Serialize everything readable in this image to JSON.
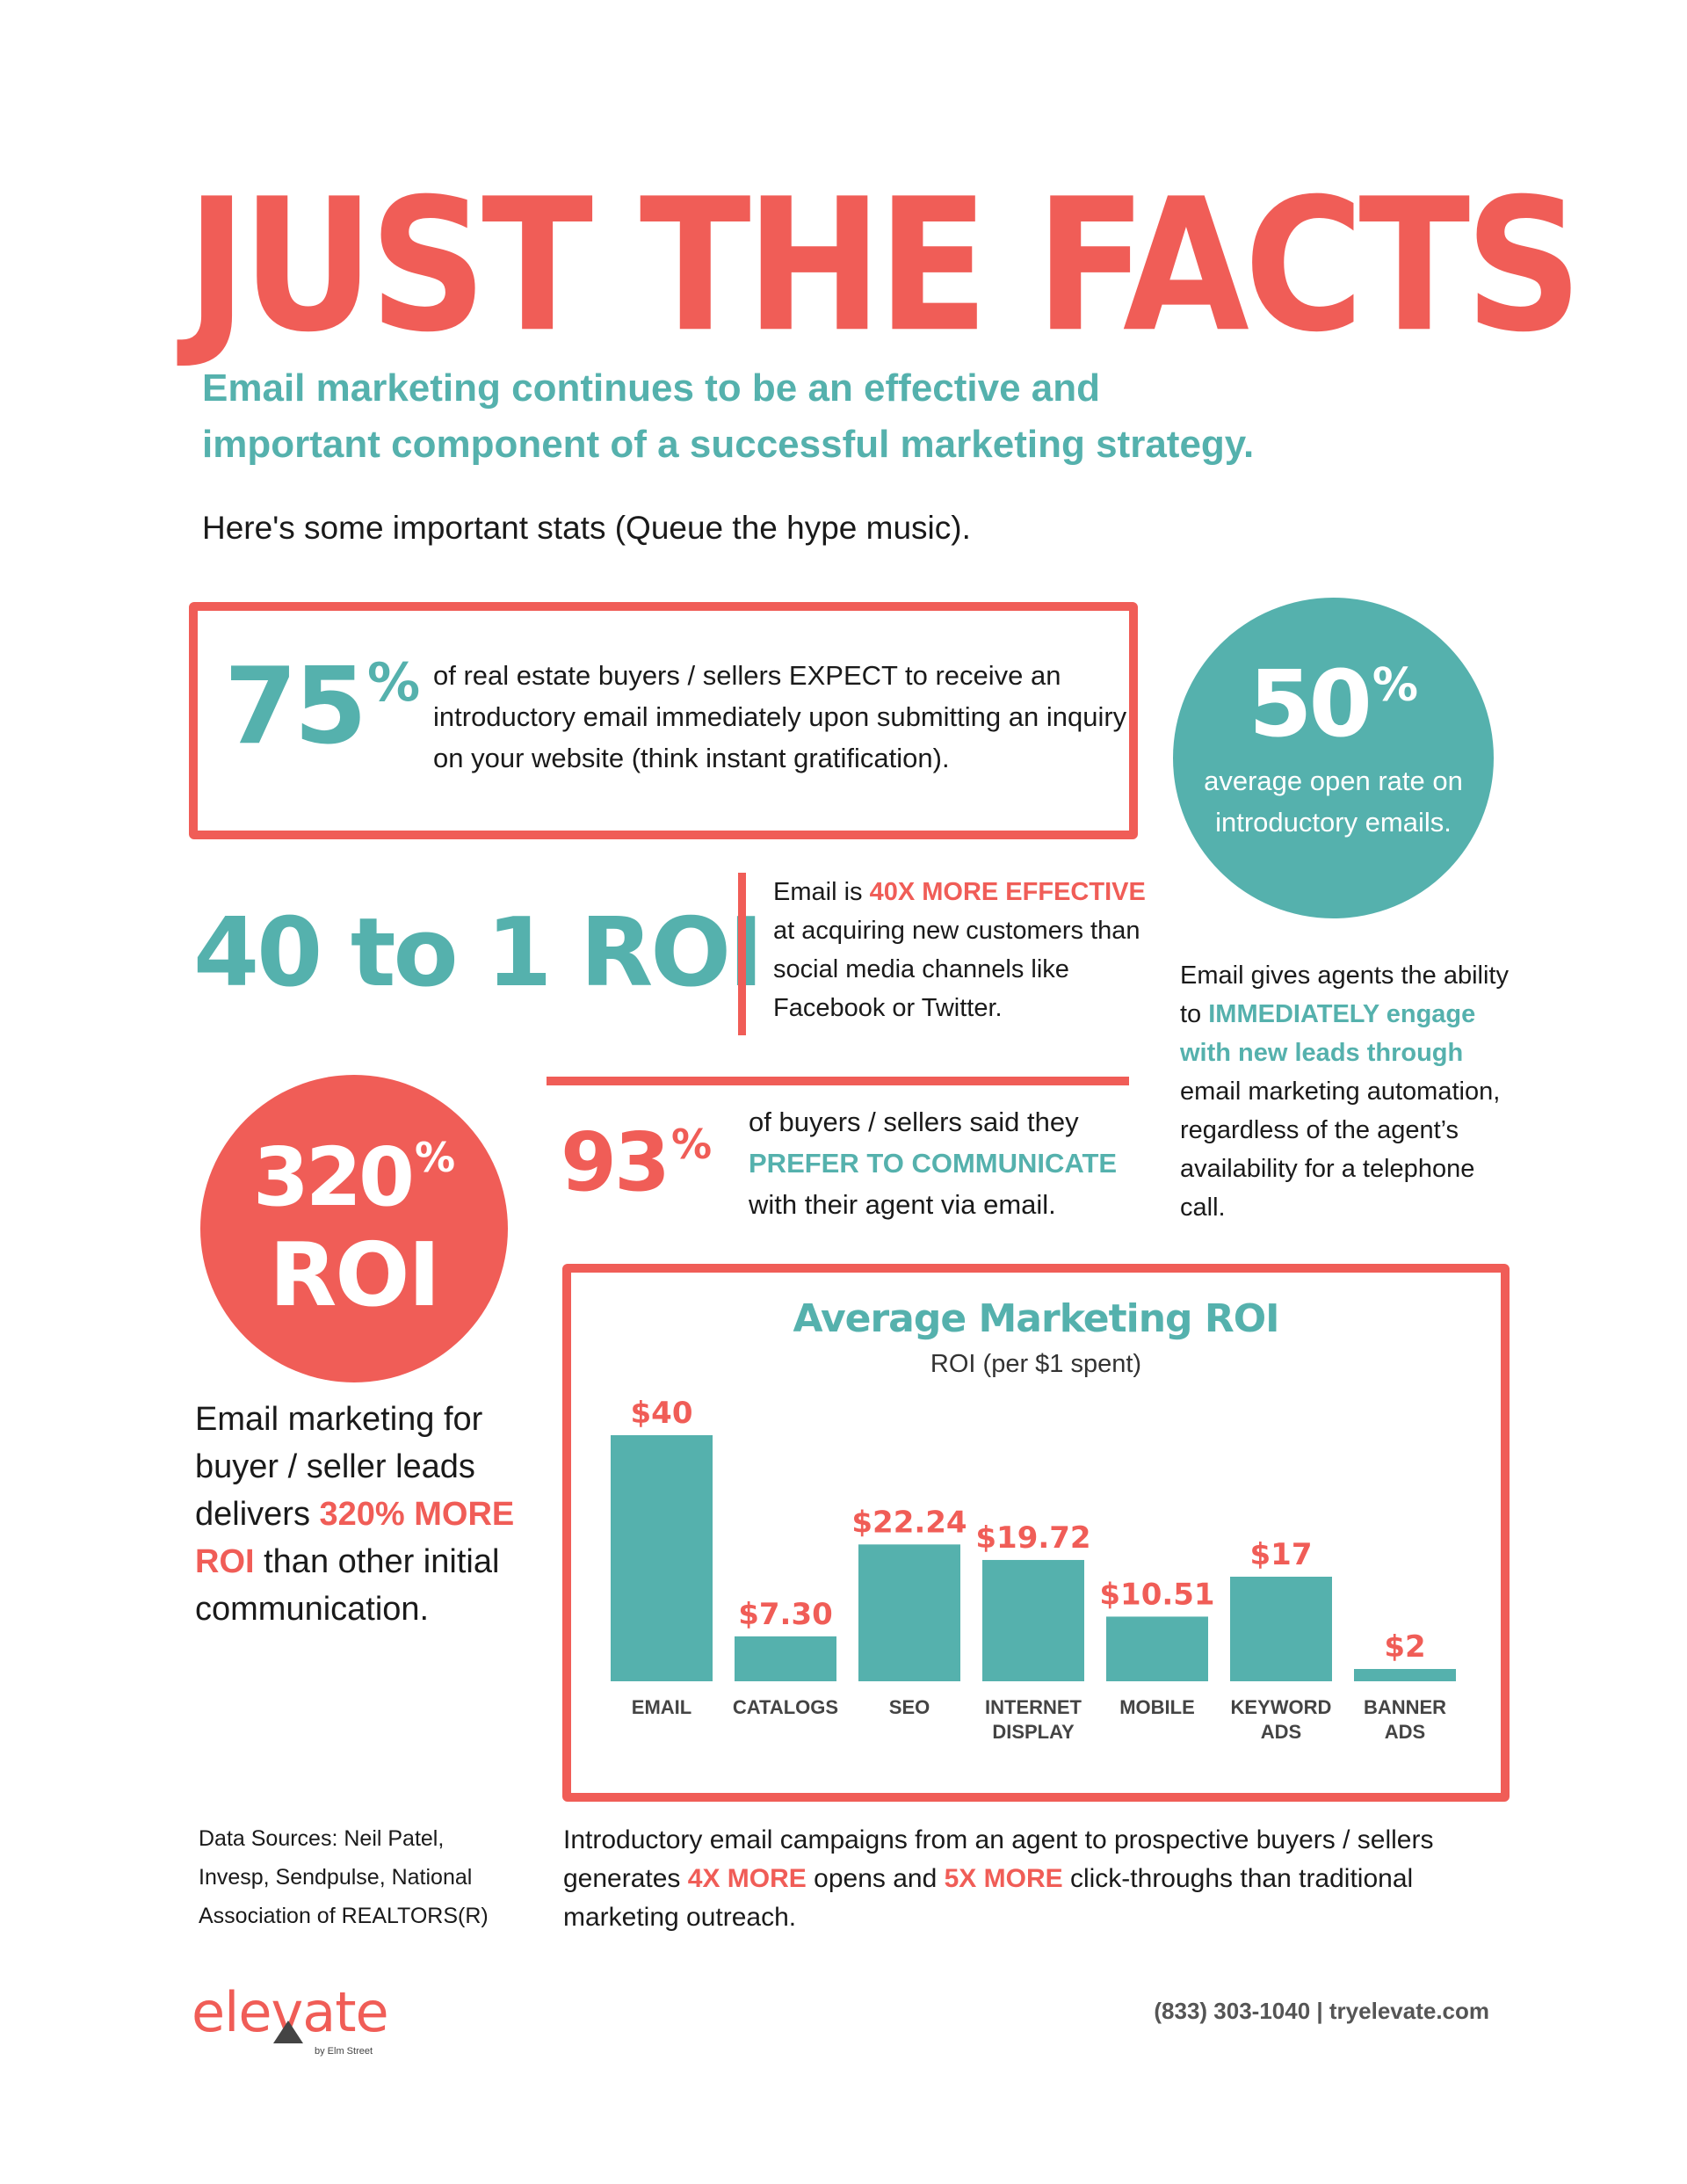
{
  "header": {
    "title": "JUST THE FACTS",
    "intro_line1": "Email marketing continues to be an effective and",
    "intro_line2": "important component of a successful marketing strategy.",
    "hype": "Here's some important stats (Queue the hype music)."
  },
  "stat75": {
    "value": "75",
    "unit": "%",
    "text": "of real estate buyers / sellers EXPECT to receive an introductory email immediately upon submitting an inquiry on your website (think instant gratification)."
  },
  "stat50": {
    "value": "50",
    "unit": "%",
    "text": "average open rate on introductory emails."
  },
  "roi40": {
    "value": "40 to 1 ROI",
    "text_before": "Email is ",
    "highlight": "40X MORE EFFECTIVE",
    "text_after": " at acquiring new customers than social media channels like Facebook or Twitter."
  },
  "engage": {
    "text_before": "Email gives agents the ability to ",
    "highlight": "IMMEDIATELY engage with new leads through",
    "text_after": " email marketing automation, regardless of the agent’s availability for a telephone call."
  },
  "stat320": {
    "value": "320",
    "unit": "%",
    "label": "ROI",
    "text_before": "Email marketing for buyer / seller leads delivers ",
    "highlight": "320% MORE ROI",
    "text_after": " than other initial communication."
  },
  "stat93": {
    "value": "93",
    "unit": "%",
    "text_before": "of buyers / sellers said they ",
    "highlight": "PREFER TO COMMUNICATE",
    "text_after": " with their agent via email."
  },
  "chart_data": {
    "type": "bar",
    "title": "Average Marketing ROI",
    "subtitle": "ROI (per $1 spent)",
    "categories": [
      [
        "EMAIL"
      ],
      [
        "CATALOGS"
      ],
      [
        "SEO"
      ],
      [
        "INTERNET",
        "DISPLAY"
      ],
      [
        "MOBILE"
      ],
      [
        "KEYWORD",
        "ADS"
      ],
      [
        "BANNER",
        "ADS"
      ]
    ],
    "values": [
      40,
      7.3,
      22.24,
      19.72,
      10.51,
      17,
      2
    ],
    "value_labels": [
      "$40",
      "$7.30",
      "$22.24",
      "$19.72",
      "$10.51",
      "$17",
      "$2"
    ],
    "ylim": [
      0,
      40
    ],
    "grid": false,
    "bar_color": "#55b1ad",
    "label_color": "#f05d57"
  },
  "footer": {
    "sources": "Data Sources:  Neil Patel, Invesp, Sendpulse, National Association of REALTORS(R)",
    "outro_1": "Introductory email campaigns from an agent to prospective buyers / sellers generates ",
    "outro_hl1": "4X MORE",
    "outro_2": " opens and ",
    "outro_hl2": "5X MORE",
    "outro_3": " click-throughs than traditional marketing outreach.",
    "logo": "elevate",
    "logo_sub": "by Elm Street",
    "contact": "(833) 303-1040  |  tryelevate.com"
  },
  "colors": {
    "coral": "#f05d57",
    "teal": "#55b1ad"
  }
}
